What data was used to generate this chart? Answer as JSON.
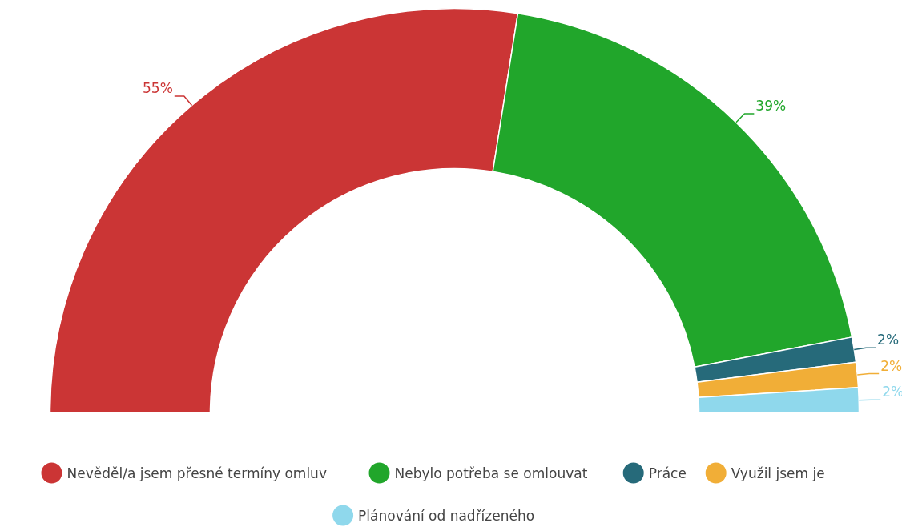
{
  "chart_data": {
    "type": "donut",
    "categories": [
      "Nevěděl/a jsem přesné termíny omluv",
      "Nebylo potřeba se omlouvat",
      "Práce",
      "Využil jsem je",
      "Plánování od nadřízeného"
    ],
    "values": [
      55,
      39,
      2,
      2,
      2
    ],
    "colors": [
      "#cb3535",
      "#21a62b",
      "#266a7a",
      "#f1ae37",
      "#8fd8ec"
    ],
    "value_labels": [
      "55%",
      "39%",
      "2%",
      "2%",
      "2%"
    ],
    "legend": "bottom"
  }
}
